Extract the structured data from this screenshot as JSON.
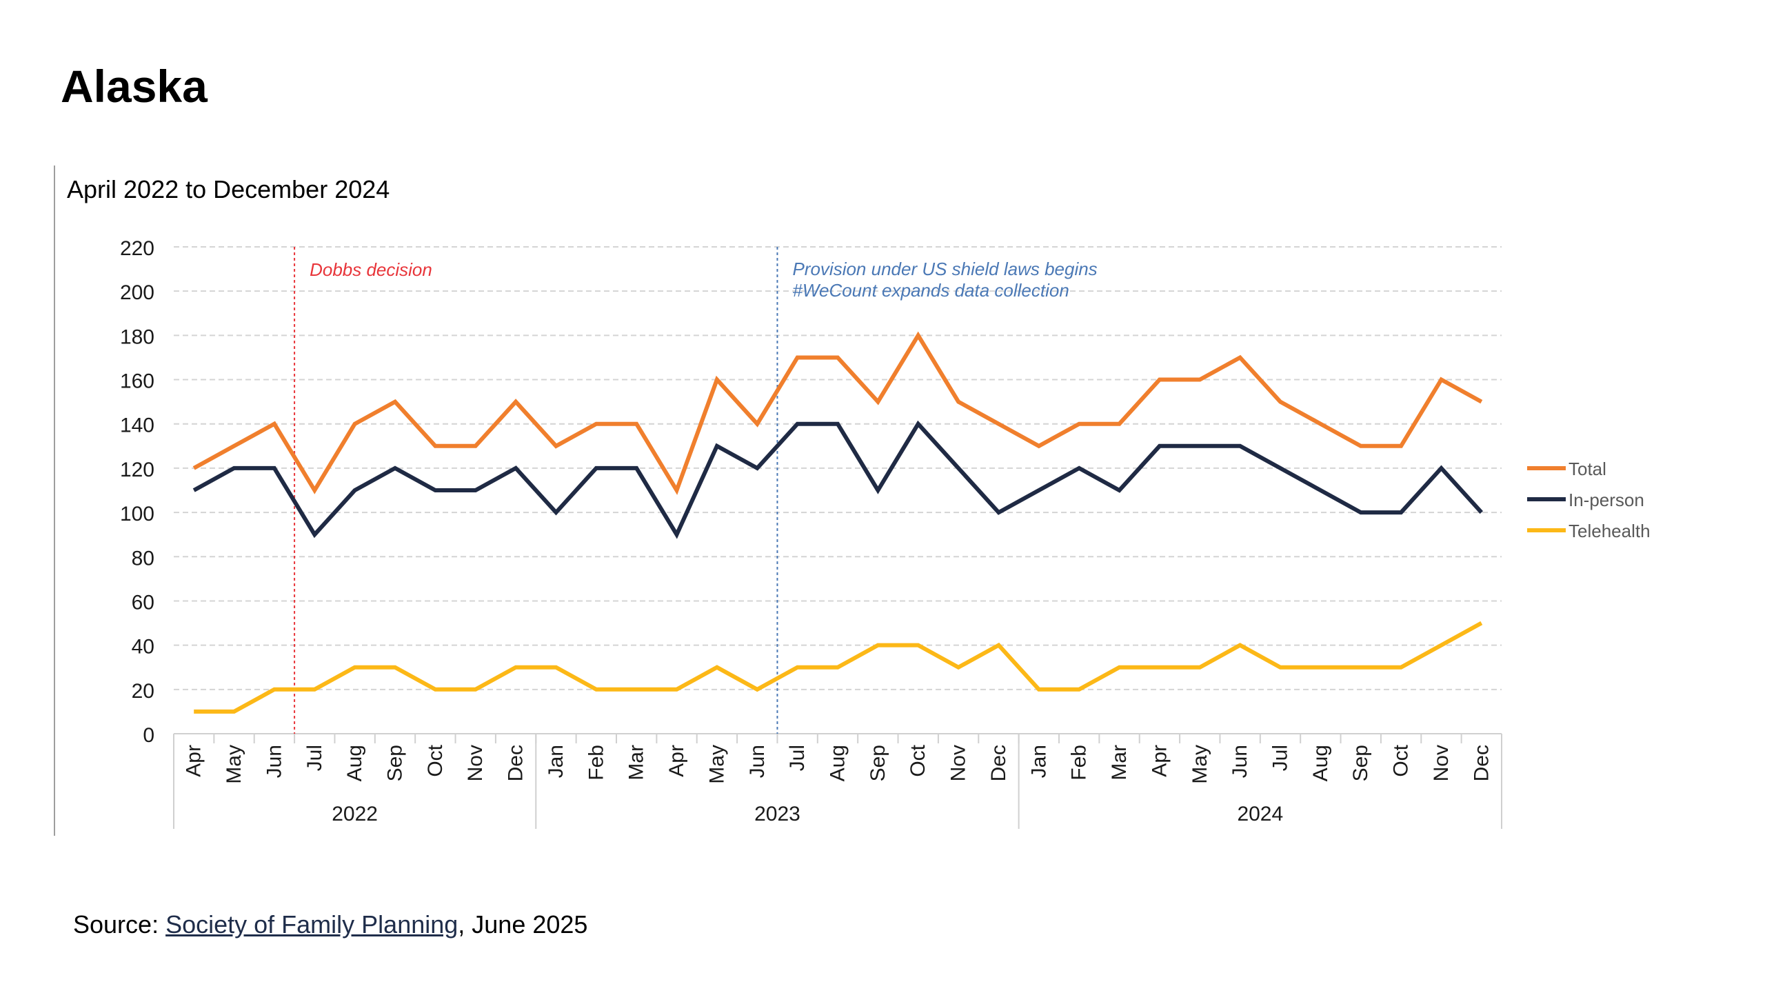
{
  "page": {
    "title": "Alaska",
    "source_prefix": "Source: ",
    "source_link": "Society of Family Planning",
    "source_suffix": ", June 2025"
  },
  "chart_data": {
    "type": "line",
    "subtitle": "April 2022 to December 2024",
    "ylim": [
      0,
      220
    ],
    "y_ticks": [
      0,
      20,
      40,
      60,
      80,
      100,
      120,
      140,
      160,
      180,
      200,
      220
    ],
    "grid": true,
    "legend_position": "right",
    "categories": [
      "Apr",
      "May",
      "Jun",
      "Jul",
      "Aug",
      "Sep",
      "Oct",
      "Nov",
      "Dec",
      "Jan",
      "Feb",
      "Mar",
      "Apr",
      "May",
      "Jun",
      "Jul",
      "Aug",
      "Sep",
      "Oct",
      "Nov",
      "Dec",
      "Jan",
      "Feb",
      "Mar",
      "Apr",
      "May",
      "Jun",
      "Jul",
      "Aug",
      "Sep",
      "Oct",
      "Nov",
      "Dec"
    ],
    "year_groups": [
      {
        "label": "2022",
        "count": 9
      },
      {
        "label": "2023",
        "count": 12
      },
      {
        "label": "2024",
        "count": 12
      }
    ],
    "series": [
      {
        "name": "Total",
        "color": "#f07f2d",
        "values": [
          120,
          130,
          140,
          110,
          140,
          150,
          130,
          130,
          150,
          130,
          140,
          140,
          110,
          160,
          140,
          170,
          170,
          150,
          180,
          150,
          140,
          130,
          140,
          140,
          160,
          160,
          170,
          150,
          140,
          130,
          130,
          160,
          150
        ]
      },
      {
        "name": "In-person",
        "color": "#1f2a44",
        "values": [
          110,
          120,
          120,
          90,
          110,
          120,
          110,
          110,
          120,
          100,
          120,
          120,
          90,
          130,
          120,
          140,
          140,
          110,
          140,
          120,
          100,
          110,
          120,
          110,
          130,
          130,
          130,
          120,
          110,
          100,
          100,
          120,
          100
        ]
      },
      {
        "name": "Telehealth",
        "color": "#fcb817",
        "values": [
          10,
          10,
          20,
          20,
          30,
          30,
          20,
          20,
          30,
          30,
          20,
          20,
          20,
          30,
          20,
          30,
          30,
          40,
          40,
          30,
          40,
          20,
          20,
          30,
          30,
          30,
          40,
          30,
          30,
          30,
          30,
          40,
          50
        ]
      }
    ],
    "annotations": [
      {
        "between_index": 2,
        "lines": [
          "Dobbs decision"
        ],
        "color": "#e8353a"
      },
      {
        "between_index": 14,
        "lines": [
          "Provision under US shield laws begins",
          "#WeCount expands data collection"
        ],
        "color": "#4a78b5"
      }
    ]
  }
}
